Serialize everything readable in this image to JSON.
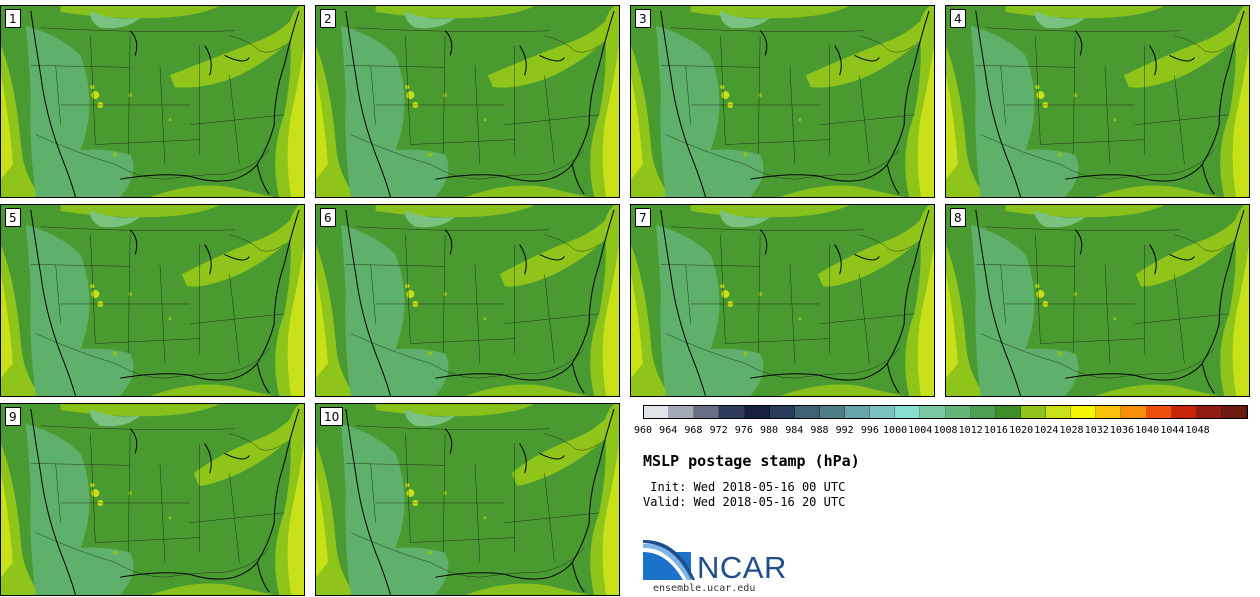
{
  "members": [
    {
      "label": "1"
    },
    {
      "label": "2"
    },
    {
      "label": "3"
    },
    {
      "label": "4"
    },
    {
      "label": "5"
    },
    {
      "label": "6"
    },
    {
      "label": "7"
    },
    {
      "label": "8"
    },
    {
      "label": "9"
    },
    {
      "label": "10"
    }
  ],
  "colorbar": {
    "colors": [
      "#e0e3e8",
      "#a4a9b8",
      "#686e86",
      "#2f3b5c",
      "#15213f",
      "#273d5a",
      "#3f6273",
      "#4d7d85",
      "#66a6aa",
      "#7bc2c0",
      "#86ded0",
      "#7bc8a2",
      "#64b47a",
      "#4d9e4f",
      "#3f8d28",
      "#8fc41a",
      "#c8e017",
      "#f7f406",
      "#f8c10a",
      "#f88d07",
      "#f04e0d",
      "#c6250c",
      "#8e1d13",
      "#6b1b10"
    ],
    "ticks": [
      "960",
      "964",
      "968",
      "972",
      "976",
      "980",
      "984",
      "988",
      "992",
      "996",
      "1000",
      "1004",
      "1008",
      "1012",
      "1016",
      "1020",
      "1024",
      "1028",
      "1032",
      "1036",
      "1040",
      "1044",
      "1048"
    ]
  },
  "legend": {
    "title": "MSLP postage stamp (hPa)",
    "init": " Init: Wed 2018-05-16 00 UTC",
    "valid": "Valid: Wed 2018-05-16 20 UTC"
  },
  "logo": {
    "text": "NCAR",
    "url": "ensemble.ucar.edu"
  },
  "map_colors": {
    "base": "#4a9a32",
    "light": "#5fb06a",
    "lighter": "#7ac27f",
    "yellow_green": "#8fc41a",
    "ocean_high": "#c8e017"
  }
}
